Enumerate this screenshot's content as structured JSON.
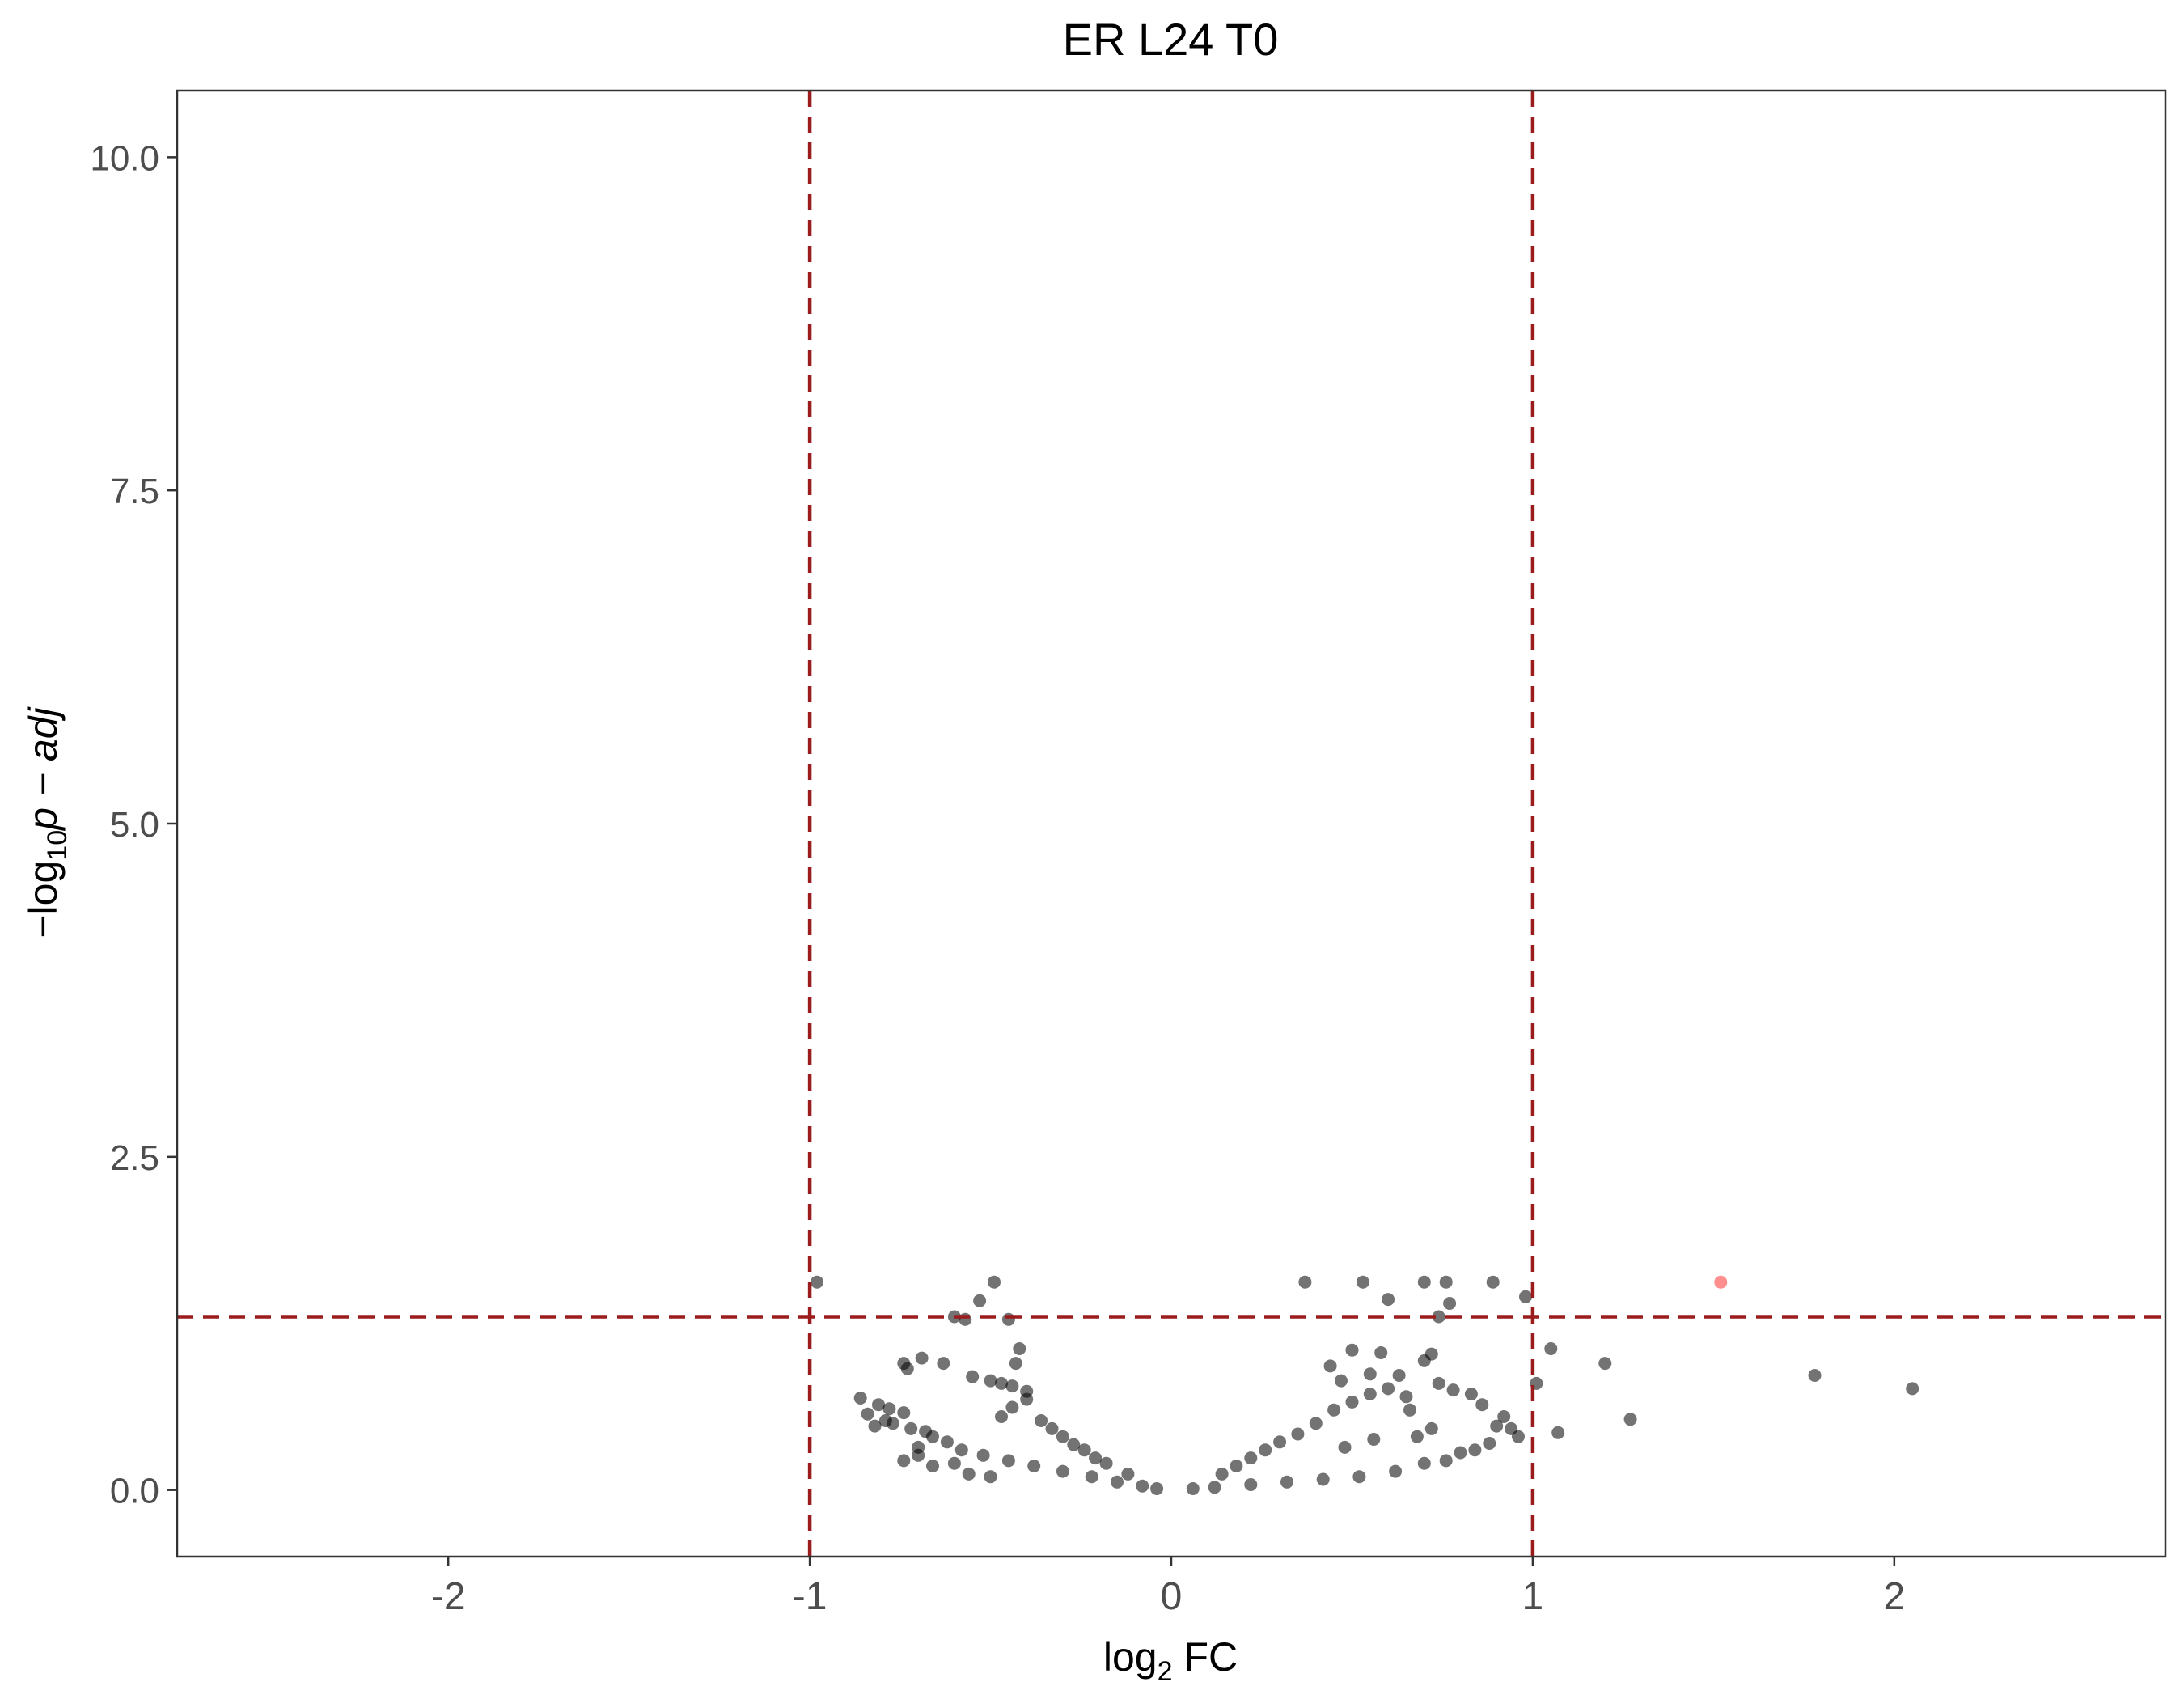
{
  "chart_data": {
    "type": "scatter",
    "title": "ER L24 T0",
    "xlabel_base": "log",
    "xlabel_sub": "2",
    "xlabel_tail": " FC",
    "ylabel_prefix": "−log",
    "ylabel_sub": "10",
    "ylabel_tail": "p − adj",
    "xlim": [
      -2.75,
      2.75
    ],
    "ylim": [
      -0.5,
      10.5
    ],
    "xticks": [
      -2,
      -1,
      0,
      1,
      2
    ],
    "xtick_labels": [
      "-2",
      "-1",
      "0",
      "1",
      "2"
    ],
    "yticks": [
      0,
      2.5,
      5,
      7.5,
      10
    ],
    "ytick_labels": [
      "0.0",
      "2.5",
      "5.0",
      "7.5",
      "10.0"
    ],
    "grid": false,
    "thresholds": {
      "fc_low": -1,
      "fc_high": 1,
      "padj_line": 1.3
    },
    "colors": {
      "not_significant": "#000000",
      "significant": "#ff3333",
      "threshold_line": "#9b1c1c",
      "panel_border": "#333333"
    },
    "point_alpha": 0.55,
    "series": [
      {
        "group": "not_significant",
        "points": [
          [
            -0.98,
            1.56
          ],
          [
            -0.49,
            1.56
          ],
          [
            -0.53,
            1.42
          ],
          [
            -0.6,
            1.3
          ],
          [
            -0.57,
            1.28
          ],
          [
            -0.45,
            1.28
          ],
          [
            -0.42,
            1.06
          ],
          [
            -0.43,
            0.95
          ],
          [
            -0.63,
            0.95
          ],
          [
            -0.69,
            0.99
          ],
          [
            -0.74,
            0.95
          ],
          [
            -0.73,
            0.91
          ],
          [
            -0.55,
            0.85
          ],
          [
            -0.5,
            0.82
          ],
          [
            -0.47,
            0.8
          ],
          [
            -0.44,
            0.78
          ],
          [
            -0.4,
            0.74
          ],
          [
            -0.86,
            0.69
          ],
          [
            -0.81,
            0.64
          ],
          [
            -0.78,
            0.61
          ],
          [
            -0.74,
            0.58
          ],
          [
            -0.84,
            0.57
          ],
          [
            -0.79,
            0.52
          ],
          [
            -0.77,
            0.5
          ],
          [
            -0.82,
            0.48
          ],
          [
            -0.72,
            0.46
          ],
          [
            -0.68,
            0.44
          ],
          [
            -0.66,
            0.4
          ],
          [
            -0.62,
            0.36
          ],
          [
            -0.7,
            0.32
          ],
          [
            -0.58,
            0.3
          ],
          [
            -0.52,
            0.26
          ],
          [
            -0.45,
            0.22
          ],
          [
            -0.38,
            0.18
          ],
          [
            -0.3,
            0.14
          ],
          [
            -0.22,
            0.1
          ],
          [
            -0.15,
            0.06
          ],
          [
            -0.08,
            0.03
          ],
          [
            -0.04,
            0.01
          ],
          [
            -0.74,
            0.22
          ],
          [
            -0.7,
            0.26
          ],
          [
            -0.66,
            0.18
          ],
          [
            -0.6,
            0.2
          ],
          [
            -0.56,
            0.12
          ],
          [
            -0.5,
            0.1
          ],
          [
            -0.47,
            0.55
          ],
          [
            -0.44,
            0.62
          ],
          [
            -0.4,
            0.68
          ],
          [
            -0.36,
            0.52
          ],
          [
            -0.33,
            0.46
          ],
          [
            -0.3,
            0.4
          ],
          [
            -0.27,
            0.34
          ],
          [
            -0.24,
            0.3
          ],
          [
            -0.21,
            0.24
          ],
          [
            -0.18,
            0.2
          ],
          [
            -0.12,
            0.12
          ],
          [
            0.37,
            1.56
          ],
          [
            0.53,
            1.56
          ],
          [
            0.7,
            1.56
          ],
          [
            0.76,
            1.56
          ],
          [
            0.89,
            1.56
          ],
          [
            0.98,
            1.45
          ],
          [
            0.77,
            1.4
          ],
          [
            0.6,
            1.43
          ],
          [
            0.74,
            1.3
          ],
          [
            0.5,
            1.05
          ],
          [
            0.58,
            1.03
          ],
          [
            0.72,
            1.02
          ],
          [
            0.7,
            0.97
          ],
          [
            0.44,
            0.93
          ],
          [
            0.55,
            0.87
          ],
          [
            0.63,
            0.86
          ],
          [
            0.47,
            0.82
          ],
          [
            0.74,
            0.8
          ],
          [
            0.78,
            0.75
          ],
          [
            0.65,
            0.7
          ],
          [
            0.83,
            0.72
          ],
          [
            0.86,
            0.64
          ],
          [
            0.92,
            0.55
          ],
          [
            0.9,
            0.48
          ],
          [
            0.94,
            0.46
          ],
          [
            0.96,
            0.4
          ],
          [
            0.88,
            0.35
          ],
          [
            0.84,
            0.3
          ],
          [
            0.8,
            0.28
          ],
          [
            0.76,
            0.22
          ],
          [
            0.7,
            0.2
          ],
          [
            0.62,
            0.14
          ],
          [
            0.52,
            0.1
          ],
          [
            0.42,
            0.08
          ],
          [
            0.32,
            0.06
          ],
          [
            0.22,
            0.04
          ],
          [
            0.12,
            0.02
          ],
          [
            0.06,
            0.01
          ],
          [
            0.4,
            0.5
          ],
          [
            0.45,
            0.6
          ],
          [
            0.5,
            0.66
          ],
          [
            0.55,
            0.72
          ],
          [
            0.6,
            0.76
          ],
          [
            0.66,
            0.6
          ],
          [
            0.35,
            0.42
          ],
          [
            0.3,
            0.36
          ],
          [
            0.26,
            0.3
          ],
          [
            0.22,
            0.24
          ],
          [
            0.18,
            0.18
          ],
          [
            0.14,
            0.12
          ],
          [
            0.68,
            0.4
          ],
          [
            0.72,
            0.46
          ],
          [
            0.56,
            0.38
          ],
          [
            0.48,
            0.32
          ],
          [
            1.01,
            0.8
          ],
          [
            1.05,
            1.06
          ],
          [
            1.07,
            0.43
          ],
          [
            1.2,
            0.95
          ],
          [
            1.27,
            0.53
          ],
          [
            1.78,
            0.86
          ],
          [
            2.05,
            0.76
          ]
        ]
      },
      {
        "group": "significant",
        "points": [
          [
            1.52,
            1.56
          ]
        ]
      }
    ]
  }
}
